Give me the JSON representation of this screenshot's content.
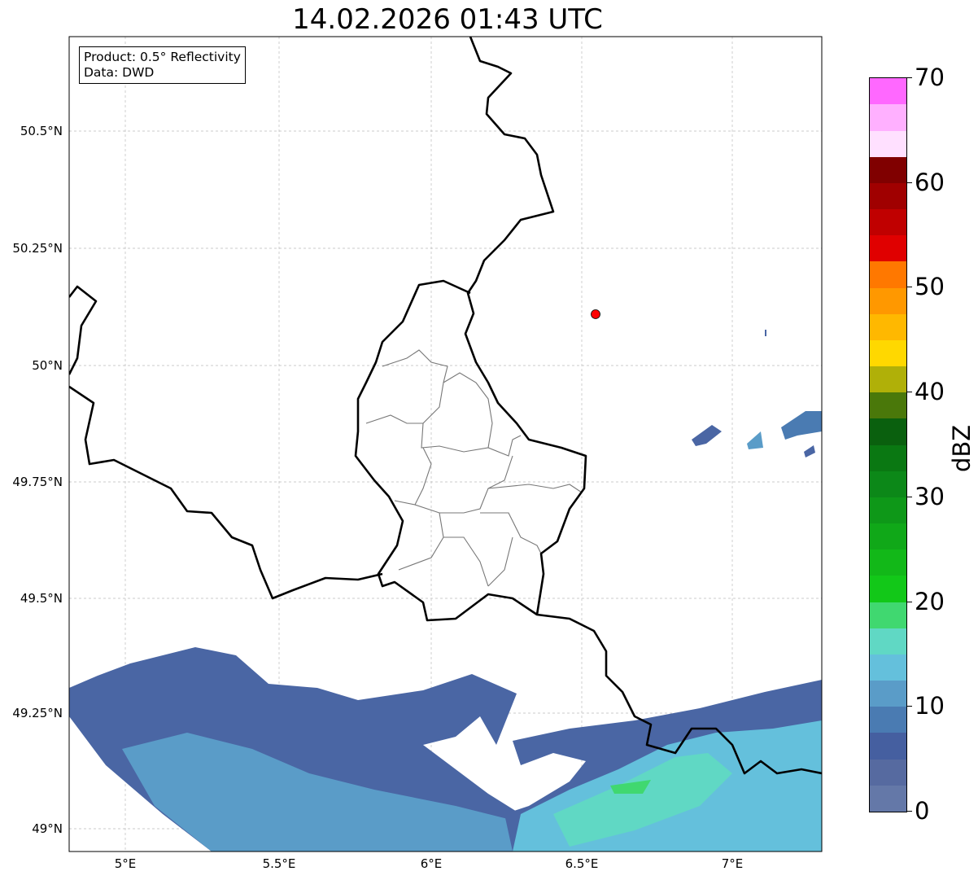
{
  "title": "14.02.2026 01:43 UTC",
  "info_box": {
    "product": "Product: 0.5° Reflectivity",
    "data": "Data: DWD"
  },
  "axes": {
    "y_ticks": [
      "50.5°N",
      "50.25°N",
      "50°N",
      "49.75°N",
      "49.5°N",
      "49.25°N",
      "49°N"
    ],
    "x_ticks": [
      "5°E",
      "5.5°E",
      "6°E",
      "6.5°E",
      "7°E"
    ],
    "extent": {
      "lon": [
        4.82,
        7.3
      ],
      "lat": [
        48.95,
        50.71
      ]
    }
  },
  "marker": {
    "label_lon": 6.55,
    "label_lat": 50.11,
    "color": "#ff0000"
  },
  "colorbar": {
    "label": "dBZ",
    "ticks": [
      "0",
      "10",
      "20",
      "30",
      "40",
      "50",
      "60",
      "70"
    ],
    "range": [
      0,
      70
    ],
    "colors": [
      "#6478a8",
      "#566aa0",
      "#455fa0",
      "#4a7bb2",
      "#5a9cc8",
      "#64c0dc",
      "#60d8c4",
      "#40d870",
      "#12c818",
      "#12b818",
      "#10a818",
      "#0e9818",
      "#0c8818",
      "#0a7812",
      "#0a600e",
      "#4a780a",
      "#b0b008",
      "#ffd800",
      "#ffb800",
      "#ff9800",
      "#ff7800",
      "#e00000",
      "#c00000",
      "#a00000",
      "#800000",
      "#ffe0ff",
      "#ffb0ff",
      "#ff68ff",
      "#e838e8"
    ]
  }
}
